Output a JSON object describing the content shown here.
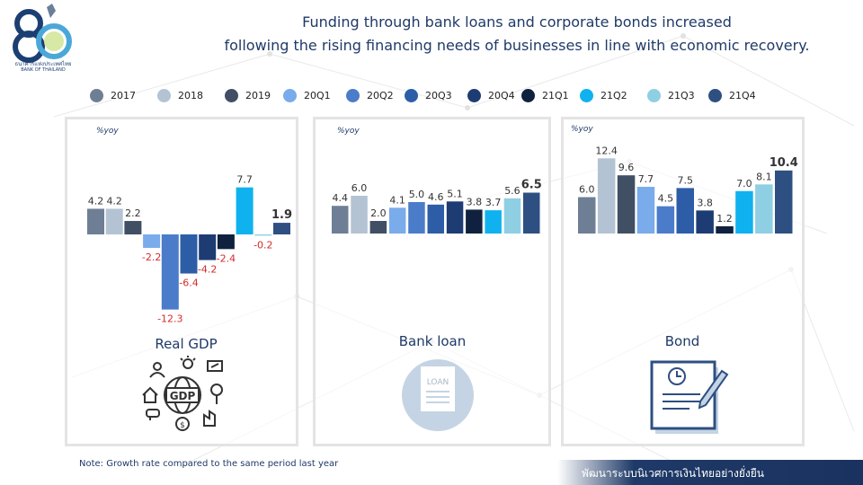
{
  "header": {
    "logo_text": "ธนาคารแห่งประเทศไทย",
    "logo_subtext": "BANK OF THAILAND",
    "title_line1": "Funding through bank loans and corporate bonds increased",
    "title_line2": "following the rising financing needs of businesses in line with economic recovery."
  },
  "legend": [
    {
      "label": "2017",
      "color": "#6e7f95"
    },
    {
      "label": "2018",
      "color": "#b4c3d3"
    },
    {
      "label": "2019",
      "color": "#404f63"
    },
    {
      "label": "20Q1",
      "color": "#7aabea"
    },
    {
      "label": "20Q2",
      "color": "#4b7cc9"
    },
    {
      "label": "20Q3",
      "color": "#2d5da6"
    },
    {
      "label": "20Q4",
      "color": "#1d3c73"
    },
    {
      "label": "21Q1",
      "color": "#10213f"
    },
    {
      "label": "21Q2",
      "color": "#0fb2ef"
    },
    {
      "label": "21Q3",
      "color": "#8fcfe3"
    },
    {
      "label": "21Q4",
      "color": "#2e4f82"
    }
  ],
  "colors": {
    "negative_label": "#d42b2b",
    "text": "#1f3a68",
    "panel_border": "#e4e4e4"
  },
  "panels": {
    "gdp": {
      "title": "Real GDP",
      "unit": "%yoy",
      "icon": "gdp-globe-icon"
    },
    "loan": {
      "title": "Bank loan",
      "unit": "%yoy",
      "icon": "loan-document-icon"
    },
    "bond": {
      "title": "Bond",
      "unit": "%yoy",
      "icon": "bond-certificate-icon"
    }
  },
  "chart_data": [
    {
      "type": "bar",
      "title": "Real GDP",
      "ylabel": "%yoy",
      "categories": [
        "2017",
        "2018",
        "2019",
        "20Q1",
        "20Q2",
        "20Q3",
        "20Q4",
        "21Q1",
        "21Q2",
        "21Q3",
        "21Q4"
      ],
      "values": [
        4.2,
        4.2,
        2.2,
        -2.2,
        -12.3,
        -6.4,
        -4.2,
        -2.4,
        7.7,
        -0.2,
        1.9
      ],
      "labels": [
        "4.2",
        "4.2",
        "2.2",
        "-2.2",
        "-12.3",
        "-6.4",
        "-4.2",
        "-2.4",
        "7.7",
        "-0.2",
        "1.9"
      ],
      "bold_last": true
    },
    {
      "type": "bar",
      "title": "Bank loan",
      "ylabel": "%yoy",
      "categories": [
        "2017",
        "2018",
        "2019",
        "20Q1",
        "20Q2",
        "20Q3",
        "20Q4",
        "21Q1",
        "21Q2",
        "21Q3",
        "21Q4"
      ],
      "values": [
        4.4,
        6.0,
        2.0,
        4.1,
        5.0,
        4.6,
        5.1,
        3.8,
        3.7,
        5.6,
        6.5
      ],
      "labels": [
        "4.4",
        "6.0",
        "2.0",
        "4.1",
        "5.0",
        "4.6",
        "5.1",
        "3.8",
        "3.7",
        "5.6",
        "6.5"
      ],
      "bold_last": true
    },
    {
      "type": "bar",
      "title": "Bond",
      "ylabel": "%yoy",
      "categories": [
        "2017",
        "2018",
        "2019",
        "20Q1",
        "20Q2",
        "20Q3",
        "20Q4",
        "21Q1",
        "21Q2",
        "21Q3",
        "21Q4"
      ],
      "values": [
        6.0,
        12.4,
        9.6,
        7.7,
        4.5,
        7.5,
        3.8,
        1.2,
        7.0,
        8.1,
        10.4
      ],
      "labels": [
        "6.0",
        "12.4",
        "9.6",
        "7.7",
        "4.5",
        "7.5",
        "3.8",
        "1.2",
        "7.0",
        "8.1",
        "10.4"
      ],
      "bold_last": true
    }
  ],
  "note": "Note: Growth rate compared to the same period last year",
  "footer_text": "พัฒนาระบบนิเวศการเงินไทยอย่างยั่งยืน"
}
